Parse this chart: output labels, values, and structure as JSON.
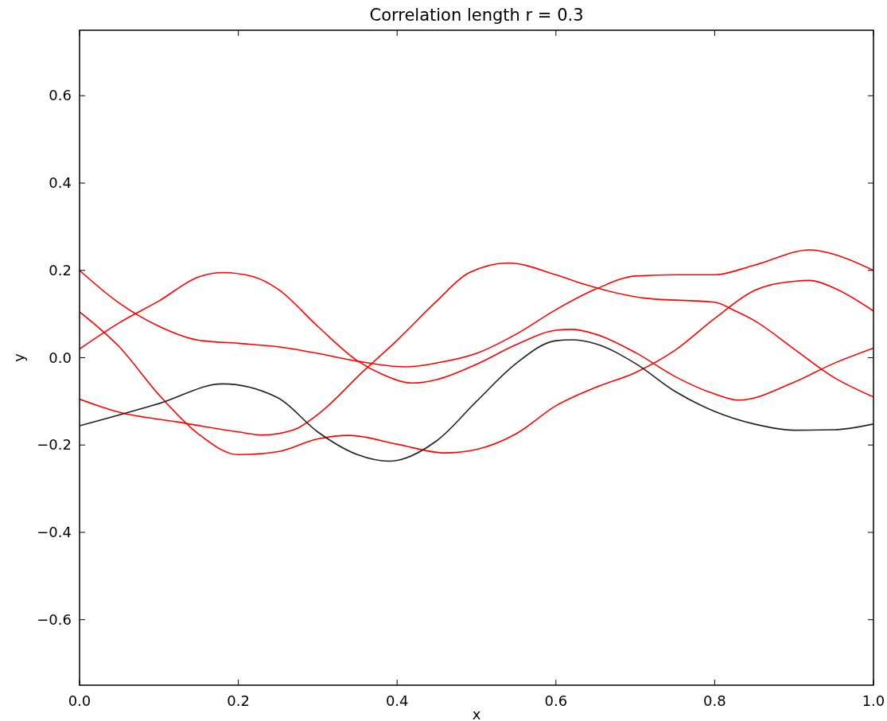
{
  "chart_data": {
    "type": "line",
    "title": "Correlation length r = 0.3",
    "xlabel": "x",
    "ylabel": "y",
    "xlim": [
      0,
      1
    ],
    "ylim": [
      -0.75,
      0.75
    ],
    "xticks": [
      {
        "value": 0,
        "label": "0.0"
      },
      0.2,
      0.4,
      0.6,
      0.8,
      {
        "value": 1,
        "label": "1.0"
      }
    ],
    "yticks": [
      {
        "value": -0.6,
        "label": "−0.6"
      },
      {
        "value": -0.4,
        "label": "−0.4"
      },
      {
        "value": -0.2,
        "label": "−0.2"
      },
      {
        "value": 0,
        "label": "0.0"
      },
      0.2,
      0.4,
      0.6
    ],
    "grid": false,
    "line_style": "solid",
    "series": [
      {
        "color": "#ff0000",
        "x": [
          0,
          0.05,
          0.1,
          0.15,
          0.18,
          0.22,
          0.25,
          0.3,
          0.35,
          0.38,
          0.42,
          0.45,
          0.5,
          0.55,
          0.6,
          0.62,
          0.65,
          0.7,
          0.75,
          0.8,
          0.83,
          0.9,
          0.95,
          1
        ],
        "values": [
          0.02,
          0.08,
          0.13,
          0.185,
          0.195,
          0.185,
          0.157,
          0.072,
          -0.007,
          -0.037,
          -0.058,
          -0.05,
          -0.015,
          0.03,
          0.063,
          0.065,
          0.054,
          0.012,
          -0.043,
          -0.083,
          -0.097,
          -0.056,
          -0.013,
          0.022
        ]
      },
      {
        "color": "#ff0000",
        "x": [
          0,
          0.05,
          0.1,
          0.15,
          0.2,
          0.25,
          0.3,
          0.35,
          0.41,
          0.45,
          0.5,
          0.55,
          0.6,
          0.65,
          0.7,
          0.75,
          0.8,
          0.85,
          0.92,
          0.95,
          1
        ],
        "values": [
          0.2,
          0.125,
          0.072,
          0.04,
          0.033,
          0.025,
          0.01,
          -0.008,
          -0.021,
          -0.012,
          0.01,
          0.054,
          0.11,
          0.157,
          0.187,
          0.19,
          0.19,
          0.212,
          0.247,
          0.237,
          0.2
        ]
      },
      {
        "color": "#ff0000",
        "x": [
          0,
          0.05,
          0.1,
          0.15,
          0.2,
          0.25,
          0.3,
          0.34,
          0.4,
          0.46,
          0.5,
          0.55,
          0.6,
          0.65,
          0.7,
          0.75,
          0.8,
          0.85,
          0.9,
          0.92,
          0.95,
          1
        ],
        "values": [
          0.105,
          0.025,
          -0.085,
          -0.175,
          -0.222,
          -0.215,
          -0.186,
          -0.178,
          -0.198,
          -0.218,
          -0.21,
          -0.174,
          -0.11,
          -0.068,
          -0.034,
          0.017,
          0.09,
          0.154,
          0.175,
          0.177,
          0.16,
          0.107
        ]
      },
      {
        "color": "#ff0000",
        "x": [
          0,
          0.05,
          0.123,
          0.2,
          0.23,
          0.27,
          0.3,
          0.358,
          0.4,
          0.45,
          0.49,
          0.54,
          0.6,
          0.636,
          0.714,
          0.8,
          0.825,
          0.85,
          0.9,
          0.95,
          1
        ],
        "values": [
          -0.095,
          -0.125,
          -0.147,
          -0.17,
          -0.177,
          -0.165,
          -0.13,
          -0.03,
          0.04,
          0.13,
          0.194,
          0.217,
          0.19,
          0.168,
          0.136,
          0.127,
          0.108,
          0.085,
          0.02,
          -0.045,
          -0.09
        ]
      },
      {
        "color": "#222222",
        "x": [
          0,
          0.1,
          0.18,
          0.25,
          0.3,
          0.35,
          0.39,
          0.45,
          0.5,
          0.55,
          0.6,
          0.62,
          0.65,
          0.7,
          0.75,
          0.8,
          0.85,
          0.9,
          0.95,
          1
        ],
        "values": [
          -0.156,
          -0.105,
          -0.06,
          -0.092,
          -0.17,
          -0.222,
          -0.237,
          -0.19,
          -0.1,
          -0.013,
          0.039,
          0.041,
          0.032,
          -0.013,
          -0.077,
          -0.123,
          -0.152,
          -0.166,
          -0.165,
          -0.152
        ]
      }
    ]
  }
}
